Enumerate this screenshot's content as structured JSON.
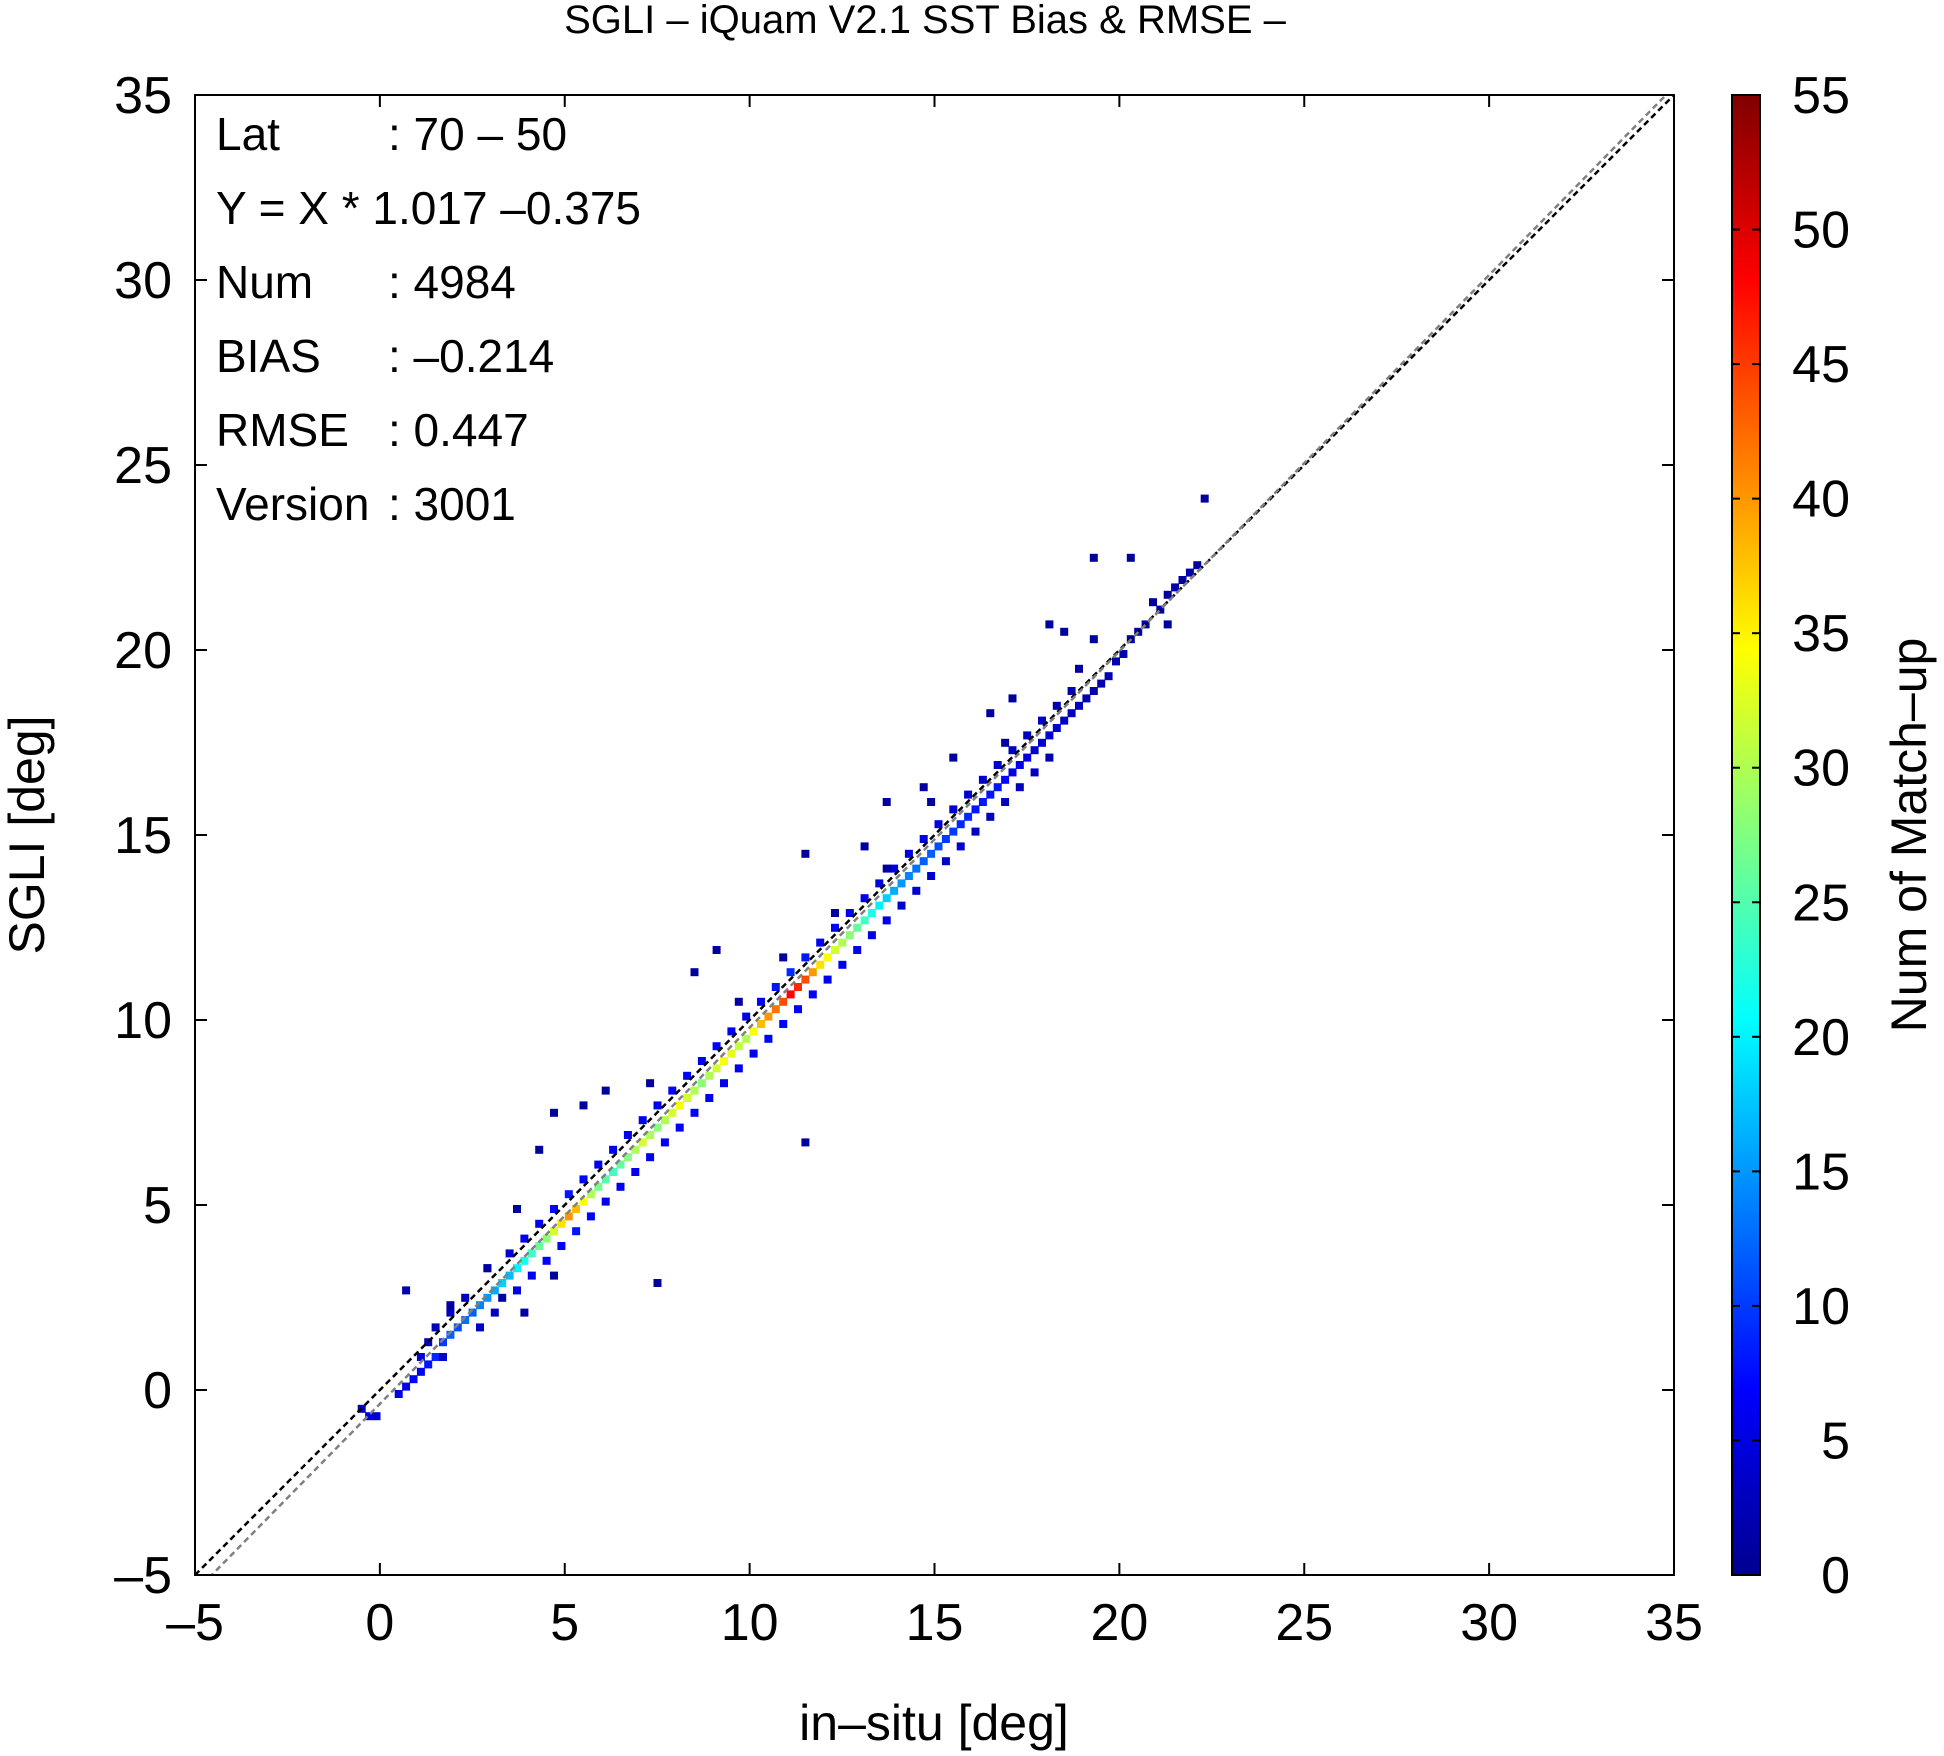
{
  "chart_data": {
    "type": "heatmap",
    "title": "SGLI – iQuam V2.1 SST Bias & RMSE  –",
    "xlabel": "in–situ [deg]",
    "ylabel": "SGLI [deg]",
    "xlim": [
      -5,
      35
    ],
    "ylim": [
      -5,
      35
    ],
    "xticks": [
      "–5",
      "0",
      "5",
      "10",
      "15",
      "20",
      "25",
      "30",
      "35"
    ],
    "yticks": [
      "–5",
      "0",
      "5",
      "10",
      "15",
      "20",
      "25",
      "30",
      "35"
    ],
    "grid": false,
    "colorbar": {
      "label": "Num of Match–up",
      "range": [
        0,
        55
      ],
      "ticks": [
        "0",
        "5",
        "10",
        "15",
        "20",
        "25",
        "30",
        "35",
        "40",
        "45",
        "50",
        "55"
      ],
      "colors": [
        "#00008f",
        "#0000ff",
        "#0080ff",
        "#00ffff",
        "#80ff80",
        "#ffff00",
        "#ff8000",
        "#ff0000",
        "#800000"
      ]
    },
    "stats": [
      {
        "key": "Lat",
        "value": ": 70 – 50"
      },
      {
        "key": "Y = X * 1.017 –0.375",
        "value": ""
      },
      {
        "key": "Num",
        "value": ": 4984"
      },
      {
        "key": "BIAS",
        "value": ": –0.214"
      },
      {
        "key": "RMSE",
        "value": ": 0.447"
      },
      {
        "key": "Version",
        "value": ": 3001"
      }
    ],
    "lines": [
      {
        "kind": "one-to-one",
        "slope": 1.0,
        "intercept": 0.0,
        "style": "dashed",
        "color": "#000000"
      },
      {
        "kind": "regression",
        "slope": 1.017,
        "intercept": -0.375,
        "style": "dashed",
        "color": "#808080"
      }
    ],
    "bin_size": 0.2,
    "bins": [
      [
        -0.6,
        -0.6,
        3
      ],
      [
        -0.4,
        -0.8,
        5
      ],
      [
        -0.2,
        -0.8,
        4
      ],
      [
        0.4,
        -0.2,
        5
      ],
      [
        0.6,
        0.0,
        6
      ],
      [
        0.6,
        2.6,
        2
      ],
      [
        0.8,
        0.2,
        7
      ],
      [
        1.0,
        0.4,
        6
      ],
      [
        1.0,
        0.8,
        4
      ],
      [
        1.2,
        0.6,
        8
      ],
      [
        1.2,
        1.2,
        3
      ],
      [
        1.4,
        0.8,
        9
      ],
      [
        1.4,
        1.6,
        3
      ],
      [
        1.6,
        0.8,
        4
      ],
      [
        1.6,
        1.2,
        10
      ],
      [
        1.8,
        1.4,
        12
      ],
      [
        1.8,
        2.0,
        3
      ],
      [
        2.0,
        1.6,
        11
      ],
      [
        2.2,
        1.8,
        13
      ],
      [
        2.2,
        2.4,
        3
      ],
      [
        2.4,
        2.0,
        12
      ],
      [
        2.6,
        2.2,
        14
      ],
      [
        2.6,
        1.6,
        4
      ],
      [
        2.8,
        2.4,
        15
      ],
      [
        2.8,
        3.2,
        3
      ],
      [
        3.0,
        2.6,
        16
      ],
      [
        3.0,
        2.0,
        3
      ],
      [
        3.2,
        2.8,
        18
      ],
      [
        3.4,
        3.0,
        17
      ],
      [
        3.4,
        3.6,
        4
      ],
      [
        3.6,
        3.2,
        20
      ],
      [
        3.6,
        2.6,
        5
      ],
      [
        3.8,
        3.4,
        22
      ],
      [
        3.8,
        4.0,
        6
      ],
      [
        4.0,
        3.6,
        24
      ],
      [
        4.0,
        3.0,
        6
      ],
      [
        4.2,
        3.8,
        26
      ],
      [
        4.2,
        4.4,
        6
      ],
      [
        4.4,
        4.0,
        28
      ],
      [
        4.4,
        3.4,
        7
      ],
      [
        4.6,
        4.2,
        32
      ],
      [
        4.6,
        4.8,
        7
      ],
      [
        4.8,
        4.4,
        36
      ],
      [
        4.8,
        3.8,
        7
      ],
      [
        5.0,
        4.6,
        40
      ],
      [
        5.0,
        5.2,
        8
      ],
      [
        5.2,
        4.8,
        38
      ],
      [
        5.2,
        4.2,
        8
      ],
      [
        5.4,
        5.0,
        34
      ],
      [
        5.4,
        5.6,
        7
      ],
      [
        5.6,
        5.2,
        30
      ],
      [
        5.6,
        4.6,
        7
      ],
      [
        5.8,
        5.4,
        27
      ],
      [
        5.8,
        6.0,
        6
      ],
      [
        6.0,
        5.6,
        25
      ],
      [
        6.0,
        5.0,
        6
      ],
      [
        6.2,
        5.8,
        24
      ],
      [
        6.2,
        6.4,
        6
      ],
      [
        6.4,
        6.0,
        26
      ],
      [
        6.4,
        5.4,
        6
      ],
      [
        6.6,
        6.2,
        28
      ],
      [
        6.6,
        6.8,
        6
      ],
      [
        6.8,
        6.4,
        30
      ],
      [
        6.8,
        5.8,
        6
      ],
      [
        7.0,
        6.6,
        32
      ],
      [
        7.0,
        7.2,
        6
      ],
      [
        7.2,
        6.8,
        30
      ],
      [
        7.2,
        6.2,
        6
      ],
      [
        7.4,
        7.0,
        28
      ],
      [
        7.4,
        7.6,
        6
      ],
      [
        7.6,
        7.2,
        30
      ],
      [
        7.6,
        6.6,
        6
      ],
      [
        7.8,
        7.4,
        32
      ],
      [
        7.8,
        8.0,
        7
      ],
      [
        8.0,
        7.6,
        34
      ],
      [
        8.0,
        7.0,
        7
      ],
      [
        8.2,
        7.8,
        32
      ],
      [
        8.2,
        8.4,
        7
      ],
      [
        8.4,
        8.0,
        30
      ],
      [
        8.4,
        7.4,
        7
      ],
      [
        8.6,
        8.2,
        28
      ],
      [
        8.6,
        8.8,
        6
      ],
      [
        8.8,
        8.4,
        30
      ],
      [
        8.8,
        7.8,
        6
      ],
      [
        9.0,
        8.6,
        32
      ],
      [
        9.0,
        9.2,
        7
      ],
      [
        9.2,
        8.8,
        34
      ],
      [
        9.2,
        8.2,
        6
      ],
      [
        9.4,
        9.0,
        33
      ],
      [
        9.4,
        9.6,
        6
      ],
      [
        9.6,
        9.2,
        31
      ],
      [
        9.6,
        8.6,
        6
      ],
      [
        9.8,
        9.4,
        30
      ],
      [
        9.8,
        10.0,
        6
      ],
      [
        10.0,
        9.6,
        34
      ],
      [
        10.0,
        9.0,
        6
      ],
      [
        10.2,
        9.8,
        38
      ],
      [
        10.2,
        10.4,
        7
      ],
      [
        10.4,
        10.0,
        40
      ],
      [
        10.4,
        9.4,
        7
      ],
      [
        10.6,
        10.2,
        42
      ],
      [
        10.6,
        10.8,
        8
      ],
      [
        10.8,
        10.4,
        44
      ],
      [
        10.8,
        9.8,
        7
      ],
      [
        11.0,
        10.6,
        48
      ],
      [
        11.0,
        11.2,
        9
      ],
      [
        11.2,
        10.8,
        46
      ],
      [
        11.2,
        10.2,
        7
      ],
      [
        11.4,
        11.0,
        44
      ],
      [
        11.4,
        11.6,
        8
      ],
      [
        11.6,
        11.2,
        40
      ],
      [
        11.6,
        10.6,
        7
      ],
      [
        11.8,
        11.4,
        36
      ],
      [
        11.8,
        12.0,
        7
      ],
      [
        12.0,
        11.6,
        34
      ],
      [
        12.0,
        11.0,
        6
      ],
      [
        12.2,
        11.8,
        32
      ],
      [
        12.2,
        12.4,
        7
      ],
      [
        12.4,
        12.0,
        30
      ],
      [
        12.4,
        11.4,
        6
      ],
      [
        12.6,
        12.2,
        28
      ],
      [
        12.6,
        12.8,
        6
      ],
      [
        12.8,
        12.4,
        26
      ],
      [
        12.8,
        11.8,
        6
      ],
      [
        13.0,
        12.6,
        24
      ],
      [
        13.0,
        13.2,
        6
      ],
      [
        13.2,
        12.8,
        22
      ],
      [
        13.2,
        12.2,
        5
      ],
      [
        13.4,
        13.0,
        20
      ],
      [
        13.4,
        13.6,
        5
      ],
      [
        13.6,
        13.2,
        18
      ],
      [
        13.6,
        12.6,
        5
      ],
      [
        13.8,
        13.4,
        16
      ],
      [
        13.8,
        14.0,
        5
      ],
      [
        14.0,
        13.6,
        15
      ],
      [
        14.0,
        13.0,
        4
      ],
      [
        14.2,
        13.8,
        14
      ],
      [
        14.2,
        14.4,
        5
      ],
      [
        14.4,
        14.0,
        13
      ],
      [
        14.4,
        13.4,
        4
      ],
      [
        14.6,
        14.2,
        12
      ],
      [
        14.6,
        14.8,
        5
      ],
      [
        14.8,
        14.4,
        12
      ],
      [
        14.8,
        13.8,
        4
      ],
      [
        15.0,
        14.6,
        11
      ],
      [
        15.0,
        15.2,
        5
      ],
      [
        15.2,
        14.8,
        10
      ],
      [
        15.2,
        14.2,
        4
      ],
      [
        15.4,
        15.0,
        10
      ],
      [
        15.4,
        15.6,
        4
      ],
      [
        15.6,
        15.2,
        9
      ],
      [
        15.6,
        14.6,
        4
      ],
      [
        15.8,
        15.4,
        9
      ],
      [
        15.8,
        16.0,
        4
      ],
      [
        16.0,
        15.6,
        8
      ],
      [
        16.0,
        15.0,
        3
      ],
      [
        16.2,
        15.8,
        8
      ],
      [
        16.2,
        16.4,
        4
      ],
      [
        16.4,
        16.0,
        8
      ],
      [
        16.4,
        15.4,
        3
      ],
      [
        16.6,
        16.2,
        8
      ],
      [
        16.6,
        16.8,
        4
      ],
      [
        16.8,
        16.4,
        7
      ],
      [
        16.8,
        15.8,
        3
      ],
      [
        17.0,
        16.6,
        6
      ],
      [
        17.0,
        17.2,
        3
      ],
      [
        17.2,
        16.8,
        5
      ],
      [
        17.2,
        16.2,
        3
      ],
      [
        17.4,
        17.0,
        5
      ],
      [
        17.4,
        17.6,
        3
      ],
      [
        17.6,
        17.2,
        4
      ],
      [
        17.6,
        16.6,
        3
      ],
      [
        17.8,
        17.4,
        4
      ],
      [
        17.8,
        18.0,
        3
      ],
      [
        18.0,
        17.6,
        4
      ],
      [
        18.0,
        17.0,
        2
      ],
      [
        18.2,
        17.8,
        4
      ],
      [
        18.2,
        18.4,
        2
      ],
      [
        18.4,
        18.0,
        3
      ],
      [
        18.6,
        18.2,
        3
      ],
      [
        18.6,
        18.8,
        2
      ],
      [
        18.8,
        18.4,
        3
      ],
      [
        19.0,
        18.6,
        2
      ],
      [
        19.2,
        18.8,
        2
      ],
      [
        19.4,
        19.0,
        2
      ],
      [
        19.6,
        19.2,
        2
      ],
      [
        19.8,
        19.6,
        2
      ],
      [
        20.0,
        19.8,
        2
      ],
      [
        20.2,
        20.2,
        2
      ],
      [
        20.4,
        20.4,
        2
      ],
      [
        20.6,
        20.6,
        2
      ],
      [
        20.8,
        21.2,
        1
      ],
      [
        21.0,
        21.0,
        2
      ],
      [
        21.2,
        21.4,
        1
      ],
      [
        21.4,
        21.6,
        2
      ],
      [
        21.6,
        21.8,
        1
      ],
      [
        21.8,
        22.0,
        2
      ],
      [
        22.0,
        22.2,
        1
      ],
      [
        22.2,
        24.0,
        1
      ],
      [
        19.2,
        22.4,
        1
      ],
      [
        20.2,
        22.4,
        1
      ],
      [
        18.0,
        20.6,
        1
      ],
      [
        18.4,
        20.4,
        1
      ],
      [
        19.2,
        20.2,
        1
      ],
      [
        16.4,
        18.2,
        1
      ],
      [
        17.0,
        18.6,
        1
      ],
      [
        15.4,
        17.0,
        1
      ],
      [
        14.6,
        16.2,
        1
      ],
      [
        13.6,
        15.8,
        1
      ],
      [
        13.0,
        14.6,
        1
      ],
      [
        11.4,
        14.4,
        1
      ],
      [
        10.8,
        11.6,
        1
      ],
      [
        11.4,
        6.6,
        1
      ],
      [
        9.0,
        11.8,
        1
      ],
      [
        7.2,
        8.2,
        1
      ],
      [
        6.0,
        8.0,
        1
      ],
      [
        4.6,
        7.4,
        1
      ],
      [
        5.4,
        7.6,
        1
      ],
      [
        4.2,
        6.4,
        1
      ],
      [
        4.6,
        3.0,
        1
      ],
      [
        3.6,
        4.8,
        1
      ],
      [
        2.8,
        3.2,
        1
      ],
      [
        3.2,
        2.4,
        1
      ],
      [
        7.4,
        2.8,
        1
      ],
      [
        3.8,
        2.0,
        1
      ],
      [
        1.8,
        2.2,
        1
      ],
      [
        9.6,
        10.4,
        1
      ],
      [
        8.4,
        11.2,
        1
      ],
      [
        12.2,
        12.8,
        1
      ],
      [
        13.6,
        14.0,
        1
      ],
      [
        14.8,
        15.8,
        1
      ],
      [
        16.8,
        17.4,
        1
      ],
      [
        18.8,
        19.4,
        1
      ],
      [
        21.2,
        20.6,
        1
      ]
    ]
  }
}
